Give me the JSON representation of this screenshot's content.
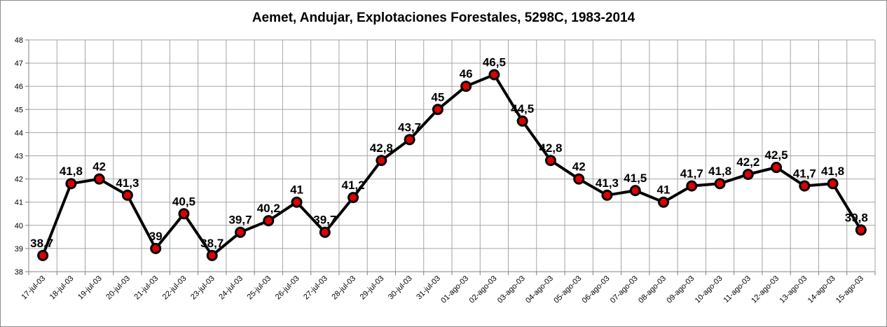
{
  "chart_data": {
    "type": "line",
    "title": "Aemet, Andujar, Explotaciones Forestales, 5298C, 1983-2014",
    "xlabel": "",
    "ylabel": "",
    "ylim": [
      38,
      48
    ],
    "y_ticks": [
      "38",
      "39",
      "40",
      "41",
      "42",
      "43",
      "44",
      "45",
      "46",
      "47",
      "48"
    ],
    "grid": true,
    "legend": "none",
    "categories": [
      "17-jul-03",
      "18-jul-03",
      "19-jul-03",
      "20-jul-03",
      "21-jul-03",
      "22-jul-03",
      "23-jul-03",
      "24-jul-03",
      "25-jul-03",
      "26-jul-03",
      "27-jul-03",
      "28-jul-03",
      "29-jul-03",
      "30-jul-03",
      "31-jul-03",
      "01-ago-03",
      "02-ago-03",
      "03-ago-03",
      "04-ago-03",
      "05-ago-03",
      "06-ago-03",
      "07-ago-03",
      "08-ago-03",
      "09-ago-03",
      "10-ago-03",
      "11-ago-03",
      "12-ago-03",
      "13-ago-03",
      "14-ago-03",
      "15-ago-03"
    ],
    "series": [
      {
        "values": [
          38.7,
          41.8,
          42,
          41.3,
          39,
          40.5,
          38.7,
          39.7,
          40.2,
          41,
          39.7,
          41.2,
          42.8,
          43.7,
          45,
          46,
          46.5,
          44.5,
          42.8,
          42,
          41.3,
          41.5,
          41,
          41.7,
          41.8,
          42.2,
          42.5,
          41.7,
          41.8,
          39.8
        ],
        "labels": [
          "38,7",
          "41,8",
          "42",
          "41,3",
          "39",
          "40,5",
          "38,7",
          "39,7",
          "40,2",
          "41",
          "39,7",
          "41,2",
          "42,8",
          "43,7",
          "45",
          "46",
          "46,5",
          "44,5",
          "42,8",
          "42",
          "41,3",
          "41,5",
          "41",
          "41,7",
          "41,8",
          "42,2",
          "42,5",
          "41,7",
          "41,8",
          "39,8"
        ]
      }
    ],
    "colors": {
      "line": "#000000",
      "marker_fill": "#e00000",
      "marker_edge": "#000000",
      "grid": "#a6a6a6",
      "axis": "#808080"
    }
  }
}
